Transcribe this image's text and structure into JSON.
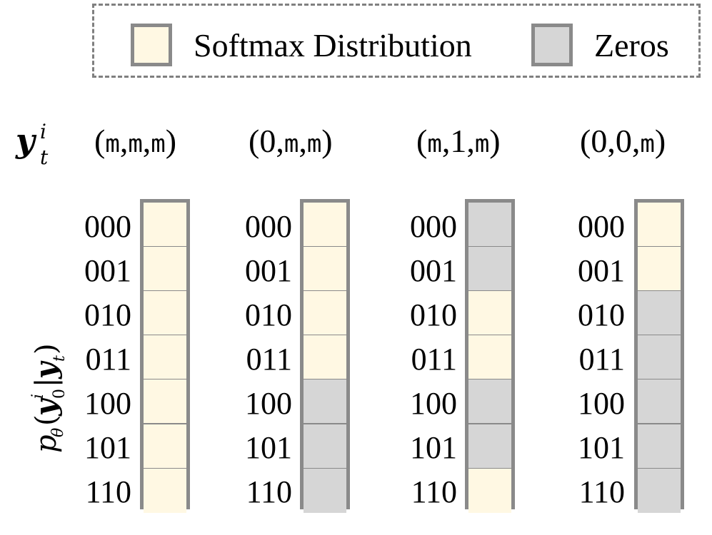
{
  "legend": {
    "softmax_label": "Softmax Distribution",
    "zeros_label": "Zeros",
    "softmax_color": "#fff8e3",
    "zeros_color": "#d6d6d6"
  },
  "row_labels": [
    "000",
    "001",
    "010",
    "011",
    "100",
    "101",
    "110"
  ],
  "columns": [
    {
      "label_prefix": "(",
      "items": [
        "m",
        "m",
        "m"
      ],
      "cells": [
        "softmax",
        "softmax",
        "softmax",
        "softmax",
        "softmax",
        "softmax",
        "softmax"
      ]
    },
    {
      "label_prefix": "(",
      "items": [
        "0",
        "m",
        "m"
      ],
      "cells": [
        "softmax",
        "softmax",
        "softmax",
        "softmax",
        "zeros",
        "zeros",
        "zeros"
      ]
    },
    {
      "label_prefix": "(",
      "items": [
        "m",
        "1",
        "m"
      ],
      "cells": [
        "zeros",
        "zeros",
        "softmax",
        "softmax",
        "zeros",
        "zeros",
        "softmax"
      ]
    },
    {
      "label_prefix": "(",
      "items": [
        "0",
        "0",
        "m"
      ],
      "cells": [
        "softmax",
        "softmax",
        "zeros",
        "zeros",
        "zeros",
        "zeros",
        "zeros"
      ]
    }
  ]
}
